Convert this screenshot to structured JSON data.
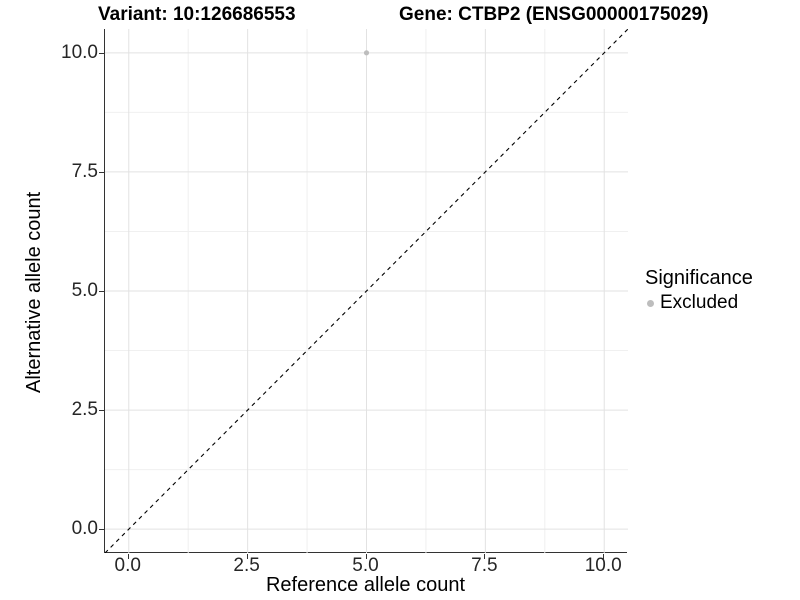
{
  "chart_data": {
    "type": "scatter",
    "titles": {
      "variant": "Variant: 10:126686553",
      "gene": "Gene: CTBP2 (ENSG00000175029)"
    },
    "xlabel": "Reference allele count",
    "ylabel": "Alternative allele count",
    "xlim": [
      -0.5,
      10.5
    ],
    "ylim": [
      -0.5,
      10.5
    ],
    "x_ticks": [
      0.0,
      2.5,
      5.0,
      7.5,
      10.0
    ],
    "y_ticks": [
      0.0,
      2.5,
      5.0,
      7.5,
      10.0
    ],
    "x_minor_ticks": [
      1.25,
      3.75,
      6.25,
      8.75
    ],
    "y_minor_ticks": [
      1.25,
      3.75,
      6.25,
      8.75
    ],
    "tick_decimals": 1,
    "grid": true,
    "points": [
      {
        "x": 5,
        "y": 10,
        "series": "Excluded"
      }
    ],
    "reference_line": {
      "type": "identity",
      "style": "dashed",
      "from": [
        -0.5,
        -0.5
      ],
      "to": [
        10.5,
        10.5
      ]
    },
    "legend": {
      "title": "Significance",
      "position": "right",
      "items": [
        {
          "label": "Excluded",
          "color": "#bdbdbd",
          "marker": "circle"
        }
      ]
    },
    "colors": {
      "point": "#bdbdbd",
      "grid_major": "#e2e2e2",
      "grid_minor": "#f0f0f0",
      "axis_line": "#333333",
      "identity_line": "#000000",
      "tick_text": "#262626"
    }
  }
}
